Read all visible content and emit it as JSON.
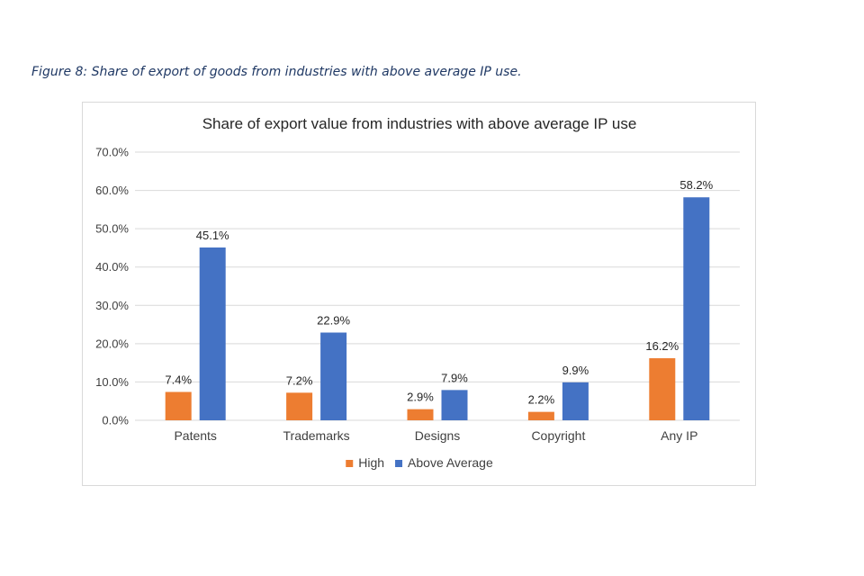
{
  "caption": "Figure 8: Share of export of goods from industries with above average IP use.",
  "chart_data": {
    "type": "bar",
    "title": "Share of export value from industries with above average IP use",
    "categories": [
      "Patents",
      "Trademarks",
      "Designs",
      "Copyright",
      "Any IP"
    ],
    "series": [
      {
        "name": "High",
        "values": [
          7.4,
          7.2,
          2.9,
          2.2,
          16.2
        ],
        "color": "#ed7d31"
      },
      {
        "name": "Above Average",
        "values": [
          45.1,
          22.9,
          7.9,
          9.9,
          58.2
        ],
        "color": "#4472c4"
      }
    ],
    "data_labels": [
      [
        "7.4%",
        "7.2%",
        "2.9%",
        "2.2%",
        "16.2%"
      ],
      [
        "45.1%",
        "22.9%",
        "7.9%",
        "9.9%",
        "58.2%"
      ]
    ],
    "yticks": [
      0,
      10,
      20,
      30,
      40,
      50,
      60,
      70
    ],
    "ytick_labels": [
      "0.0%",
      "10.0%",
      "20.0%",
      "30.0%",
      "40.0%",
      "50.0%",
      "60.0%",
      "70.0%"
    ],
    "ylim": [
      0,
      70
    ],
    "xlabel": "",
    "ylabel": "",
    "grid": true,
    "legend_position": "bottom",
    "gridline_color": "#d9d9d9"
  }
}
